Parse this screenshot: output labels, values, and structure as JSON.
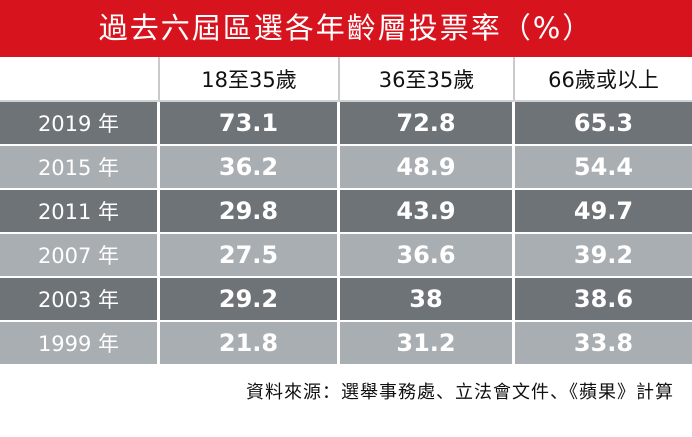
{
  "title": "過去六屆區選各年齡層投票率（%）",
  "table": {
    "header": [
      "",
      "18至35歲",
      "36至35歲",
      "66歲或以上"
    ],
    "rows": [
      [
        "2019 年",
        73.1,
        72.8,
        65.3
      ],
      [
        "2015 年",
        36.2,
        48.9,
        54.4
      ],
      [
        "2011 年",
        29.8,
        43.9,
        49.7
      ],
      [
        "2007 年",
        27.5,
        36.6,
        39.2
      ],
      [
        "2003 年",
        29.2,
        38,
        38.6
      ],
      [
        "1999 年",
        21.8,
        31.2,
        33.8
      ]
    ]
  },
  "source": "資料來源：選舉事務處、立法會文件、《蘋果》計算"
}
